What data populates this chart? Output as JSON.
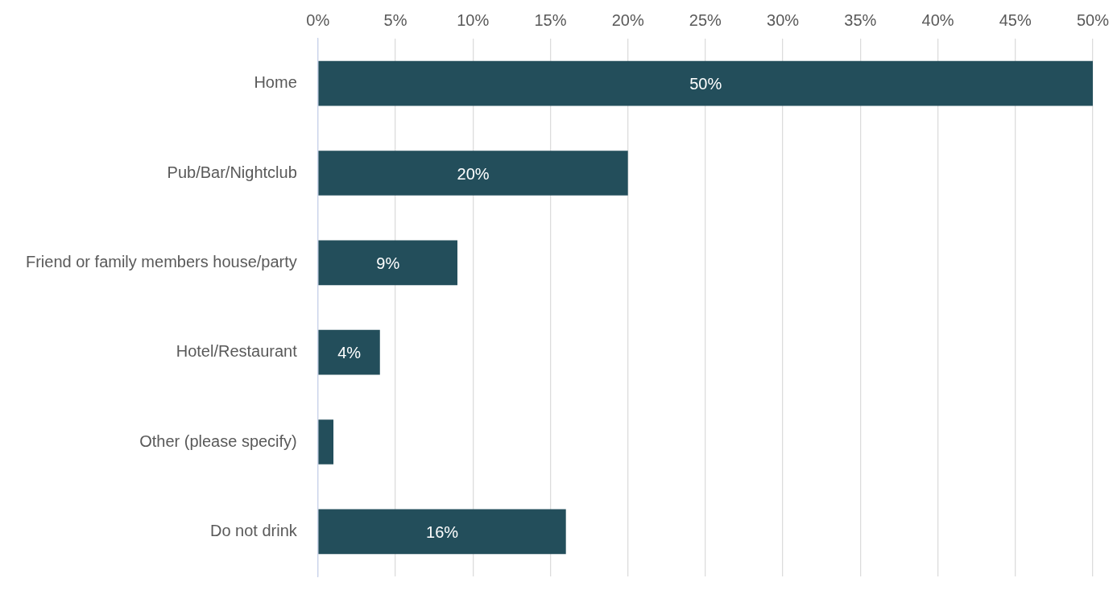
{
  "chart_data": {
    "type": "bar",
    "orientation": "horizontal",
    "categories": [
      "Home",
      "Pub/Bar/Nightclub",
      "Friend or family members house/party",
      "Hotel/Restaurant",
      "Other (please specify)",
      "Do not drink"
    ],
    "values": [
      50,
      20,
      9,
      4,
      1,
      16
    ],
    "value_labels": [
      "50%",
      "20%",
      "9%",
      "4%",
      null,
      "16%"
    ],
    "color": "#234e5b",
    "xlim": [
      0,
      50
    ],
    "xticks": [
      {
        "value": 0,
        "label": "0%"
      },
      {
        "value": 5,
        "label": "5%"
      },
      {
        "value": 10,
        "label": "10%"
      },
      {
        "value": 15,
        "label": "15%"
      },
      {
        "value": 20,
        "label": "20%"
      },
      {
        "value": 25,
        "label": "25%"
      },
      {
        "value": 30,
        "label": "30%"
      },
      {
        "value": 35,
        "label": "35%"
      },
      {
        "value": 40,
        "label": "40%"
      },
      {
        "value": 45,
        "label": "45%"
      },
      {
        "value": 50,
        "label": "50%"
      }
    ],
    "grid": "x"
  }
}
